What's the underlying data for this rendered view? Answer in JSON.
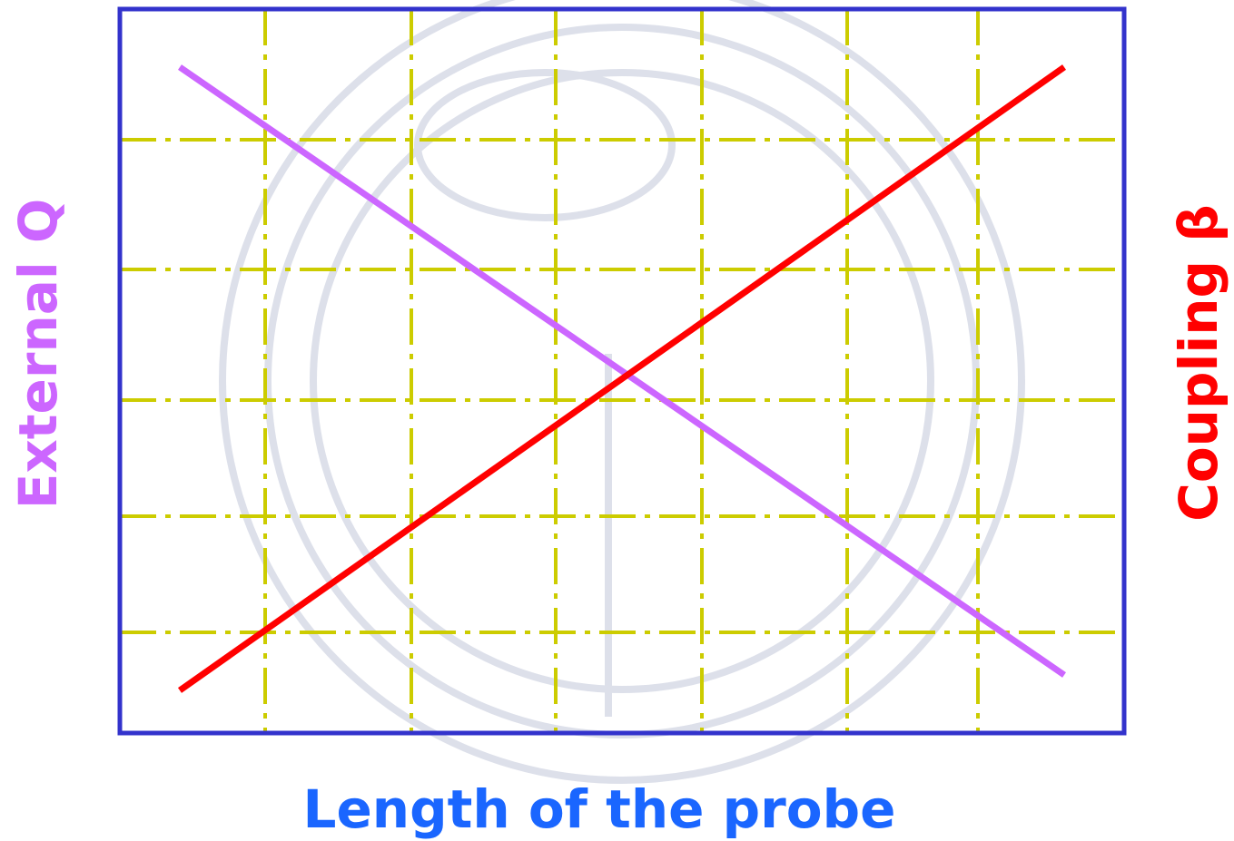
{
  "axes": {
    "x_label": "Length of the probe",
    "left_label": "External Q",
    "right_label": "Coupling β"
  }
}
